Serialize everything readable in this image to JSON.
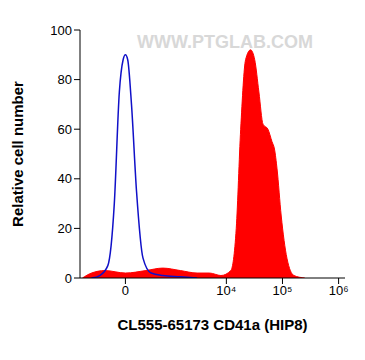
{
  "chart_data": {
    "type": "histogram",
    "annotation": "WWW.PTGLAB.COM",
    "x_label": "CL555-65173 CD41a (HIP8)",
    "y_label": "Relative cell number",
    "xlim": [
      -1000,
      1300000
    ],
    "xticks": [
      {
        "value": 0,
        "label": "0"
      },
      {
        "value": 10000,
        "label": "10⁴"
      },
      {
        "value": 100000,
        "label": "10⁵"
      },
      {
        "value": 1000000,
        "label": "10⁶"
      }
    ],
    "ylim": [
      0,
      100
    ],
    "yticks": [
      0,
      20,
      40,
      60,
      80,
      100
    ],
    "grid": false,
    "series": [
      {
        "type": "area",
        "color": "#ff0000",
        "x": [
          -900,
          -600,
          -300,
          0,
          300,
          700,
          1500,
          3000,
          5000,
          8000,
          12000,
          15000,
          18000,
          22000,
          27000,
          32000,
          38000,
          45000,
          55000,
          65000,
          72000,
          80000,
          95000,
          120000,
          160000,
          250000
        ],
        "values": [
          0,
          2,
          3,
          2,
          3,
          4,
          3,
          2,
          2,
          1,
          3,
          20,
          60,
          88,
          92,
          88,
          75,
          62,
          60,
          55,
          52,
          44,
          25,
          8,
          1,
          0
        ]
      },
      {
        "type": "line",
        "color": "#1010c8",
        "x": [
          -600,
          -400,
          -250,
          -150,
          -80,
          -30,
          0,
          30,
          80,
          150,
          250,
          400,
          700,
          1500,
          3000
        ],
        "values": [
          0,
          1,
          5,
          30,
          75,
          88,
          90,
          88,
          70,
          35,
          8,
          2,
          1,
          0.5,
          0
        ]
      }
    ]
  }
}
